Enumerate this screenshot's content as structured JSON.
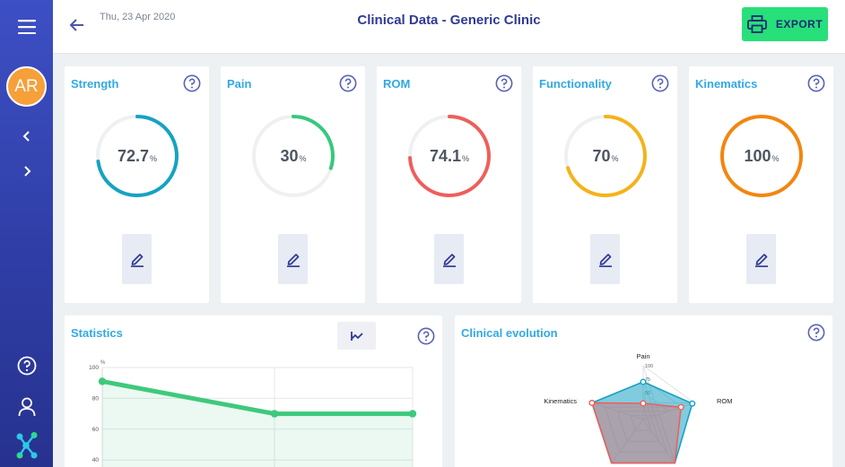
{
  "sidebar": {
    "avatar_initials": "AR"
  },
  "header": {
    "date": "Thu, 23 Apr 2020",
    "title": "Clinical Data - Generic Clinic",
    "export_label": "EXPORT"
  },
  "metrics": [
    {
      "label": "Strength",
      "value": "72.7",
      "unit": "%",
      "percent": 72.7,
      "color": "#17a2c2"
    },
    {
      "label": "Pain",
      "value": "30",
      "unit": "%",
      "percent": 30,
      "color": "#36c97c"
    },
    {
      "label": "ROM",
      "value": "74.1",
      "unit": "%",
      "percent": 74.1,
      "color": "#ee5f5b"
    },
    {
      "label": "Functionality",
      "value": "70",
      "unit": "%",
      "percent": 70,
      "color": "#f5b21a"
    },
    {
      "label": "Kinematics",
      "value": "100",
      "unit": "%",
      "percent": 100,
      "color": "#f3860f"
    }
  ],
  "statistics": {
    "title": "Statistics"
  },
  "evolution": {
    "title": "Clinical evolution"
  },
  "chart_data": [
    {
      "type": "line",
      "title": "Statistics",
      "ylabel": "%",
      "yticks": [
        "100",
        "80",
        "60",
        "40"
      ],
      "ylim": [
        0,
        100
      ],
      "x": [
        0,
        1,
        2
      ],
      "series": [
        {
          "values": [
            91,
            70,
            70
          ],
          "color": "#3ec97c"
        }
      ],
      "grid": true
    },
    {
      "type": "radar",
      "title": "Clinical evolution",
      "axes": [
        "Pain",
        "ROM",
        "Kinematics"
      ],
      "scale_ticks": [
        "100",
        "75",
        "50"
      ],
      "rmax": 100,
      "series": [
        {
          "values": [
            70,
            96,
            100
          ],
          "color": "#17a2c2"
        },
        {
          "values": [
            30,
            74,
            100
          ],
          "color": "#ee5f5b"
        }
      ]
    }
  ]
}
